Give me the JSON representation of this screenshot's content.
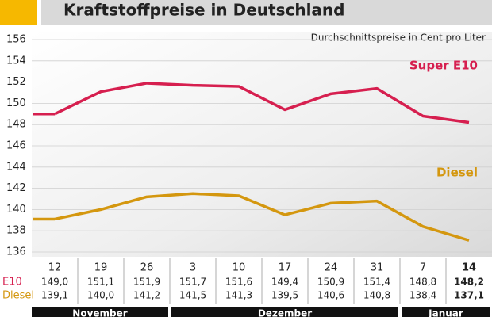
{
  "chart_data": {
    "type": "line",
    "title": "Kraftstoffpreise in Deutschland",
    "subtitle": "Durchschnittspreise in Cent pro Liter",
    "categories": [
      "12",
      "19",
      "26",
      "3",
      "10",
      "17",
      "24",
      "31",
      "7",
      "14"
    ],
    "groups": [
      {
        "name": "November",
        "count": 3
      },
      {
        "name": "Dezember",
        "count": 5
      },
      {
        "name": "Januar",
        "count": 2
      }
    ],
    "series": [
      {
        "name": "Super E10",
        "table_label": "E10",
        "color": "#d61f4f",
        "values": [
          149.0,
          151.1,
          151.9,
          151.7,
          151.6,
          149.4,
          150.9,
          151.4,
          148.8,
          148.2
        ],
        "value_labels": [
          "149,0",
          "151,1",
          "151,9",
          "151,7",
          "151,6",
          "149,4",
          "150,9",
          "151,4",
          "148,8",
          "148,2"
        ]
      },
      {
        "name": "Diesel",
        "table_label": "Diesel",
        "color": "#d4970f",
        "values": [
          139.1,
          140.0,
          141.2,
          141.5,
          141.3,
          139.5,
          140.6,
          140.8,
          138.4,
          137.1
        ],
        "value_labels": [
          "139,1",
          "140,0",
          "141,2",
          "141,5",
          "141,3",
          "139,5",
          "140,6",
          "140,8",
          "138,4",
          "137,1"
        ]
      }
    ],
    "ylim": [
      136,
      156
    ],
    "yticks": [
      136,
      138,
      140,
      142,
      144,
      146,
      148,
      150,
      152,
      154,
      156
    ],
    "grid": true
  }
}
